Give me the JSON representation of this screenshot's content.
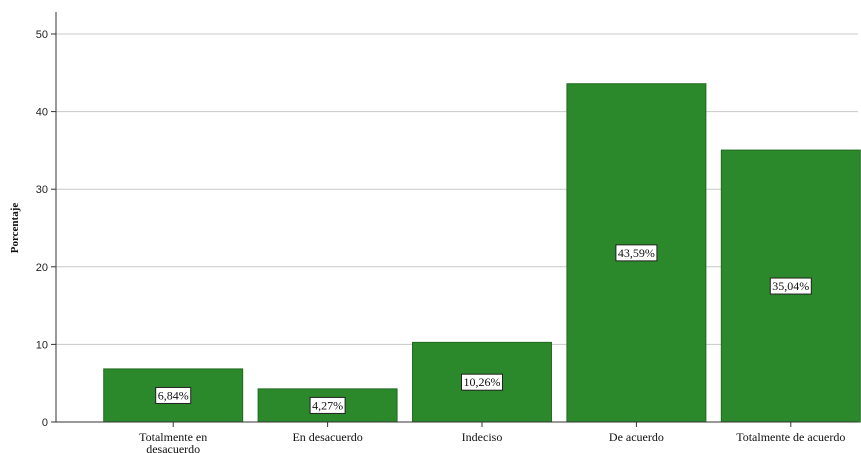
{
  "chart_data": {
    "type": "bar",
    "title": "",
    "xlabel": "",
    "ylabel": "Porcentaje",
    "categories": [
      [
        "Totalmente en",
        "desacuerdo"
      ],
      [
        "En desacuerdo"
      ],
      [
        "Indeciso"
      ],
      [
        "De acuerdo"
      ],
      [
        "Totalmente de acuerdo"
      ]
    ],
    "values": [
      6.84,
      4.27,
      10.26,
      43.59,
      35.04
    ],
    "data_labels": [
      "6,84%",
      "4,27%",
      "10,26%",
      "43,59%",
      "35,04%"
    ],
    "ylim": [
      0,
      50
    ],
    "yticks": [
      0,
      10,
      20,
      30,
      40,
      50
    ],
    "grid": true,
    "bar_color": "#2b882b",
    "bar_edge_color": "#1e6b1e",
    "grid_color": "#c8c8c8"
  }
}
